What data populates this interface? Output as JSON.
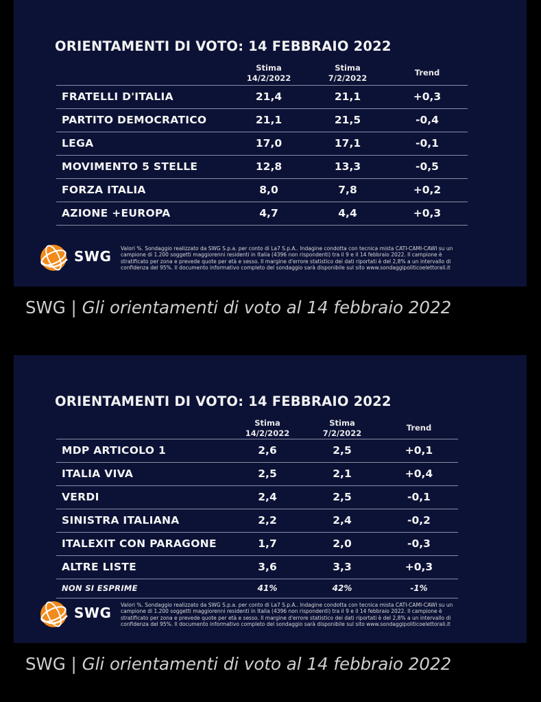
{
  "panel1": {
    "title": "ORIENTAMENTI DI VOTO: 14 FEBBRAIO 2022",
    "col1": {
      "line1": "Stima",
      "line2": "14/2/2022"
    },
    "col2": {
      "line1": "Stima",
      "line2": "7/2/2022"
    },
    "col3": "Trend",
    "rows": [
      {
        "name": "FRATELLI D'ITALIA",
        "v1": "21,4",
        "v2": "21,1",
        "trend": "+0,3"
      },
      {
        "name": "PARTITO DEMOCRATICO",
        "v1": "21,1",
        "v2": "21,5",
        "trend": "-0,4"
      },
      {
        "name": "LEGA",
        "v1": "17,0",
        "v2": "17,1",
        "trend": "-0,1"
      },
      {
        "name": "MOVIMENTO 5 STELLE",
        "v1": "12,8",
        "v2": "13,3",
        "trend": "-0,5"
      },
      {
        "name": "FORZA ITALIA",
        "v1": "8,0",
        "v2": "7,8",
        "trend": "+0,2"
      },
      {
        "name": "AZIONE +EUROPA",
        "v1": "4,7",
        "v2": "4,4",
        "trend": "+0,3"
      }
    ],
    "logo_text": "SWG",
    "note": "Valori %. Sondaggio realizzato da SWG S.p.a. per conto di La7 S.p.A.. Indagine condotta con tecnica mista CATI-CAMI-CAWI su un campione di 1.200 soggetti maggiorenni residenti in Italia (4396 non rispondenti) tra il 9 e il 14 febbraio 2022. Il campione è stratificato per zona e prevede quote per età e sesso. Il margine d'errore statistico dei dati riportati è del 2,8% a un intervallo di confidenza del 95%. Il documento informativo completo del sondaggio sarà disponibile sul sito www.sondaggipoliticoelettorali.it"
  },
  "caption1": {
    "source": "SWG | ",
    "title": "Gli orientamenti di voto al 14 febbraio 2022"
  },
  "panel2": {
    "title": "ORIENTAMENTI DI VOTO: 14 FEBBRAIO 2022",
    "col1": {
      "line1": "Stima",
      "line2": "14/2/2022"
    },
    "col2": {
      "line1": "Stima",
      "line2": "7/2/2022"
    },
    "col3": "Trend",
    "rows": [
      {
        "name": "MDP ARTICOLO 1",
        "v1": "2,6",
        "v2": "2,5",
        "trend": "+0,1"
      },
      {
        "name": "ITALIA VIVA",
        "v1": "2,5",
        "v2": "2,1",
        "trend": "+0,4"
      },
      {
        "name": "VERDI",
        "v1": "2,4",
        "v2": "2,5",
        "trend": "-0,1"
      },
      {
        "name": "SINISTRA ITALIANA",
        "v1": "2,2",
        "v2": "2,4",
        "trend": "-0,2"
      },
      {
        "name": "ITALEXIT CON PARAGONE",
        "v1": "1,7",
        "v2": "2,0",
        "trend": "-0,3"
      },
      {
        "name": "ALTRE LISTE",
        "v1": "3,6",
        "v2": "3,3",
        "trend": "+0,3"
      }
    ],
    "extra_row": {
      "name": "NON SI ESPRIME",
      "v1": "41%",
      "v2": "42%",
      "trend": "-1%"
    },
    "logo_text": "SWG",
    "note": "Valori %. Sondaggio realizzato da SWG S.p.a. per conto di La7 S.p.A.. Indagine condotta con tecnica mista CATI-CAMI-CAWI su un campione di 1.200 soggetti maggiorenni residenti in Italia (4396 non rispondenti) tra il 9 e il 14 febbraio 2022. Il campione è stratificato per zona e prevede quote per età e sesso. Il margine d'errore statistico dei dati riportati è del 2,8% a un intervallo di confidenza del 95%. Il documento informativo completo del sondaggio sarà disponibile sul sito www.sondaggipoliticoelettorali.it"
  },
  "caption2": {
    "source": "SWG | ",
    "title": "Gli orientamenti di voto al 14 febbraio 2022"
  },
  "colors": {
    "panel_bg": "#0c1236",
    "page_bg": "#000000",
    "logo_orange": "#f28a1c"
  }
}
